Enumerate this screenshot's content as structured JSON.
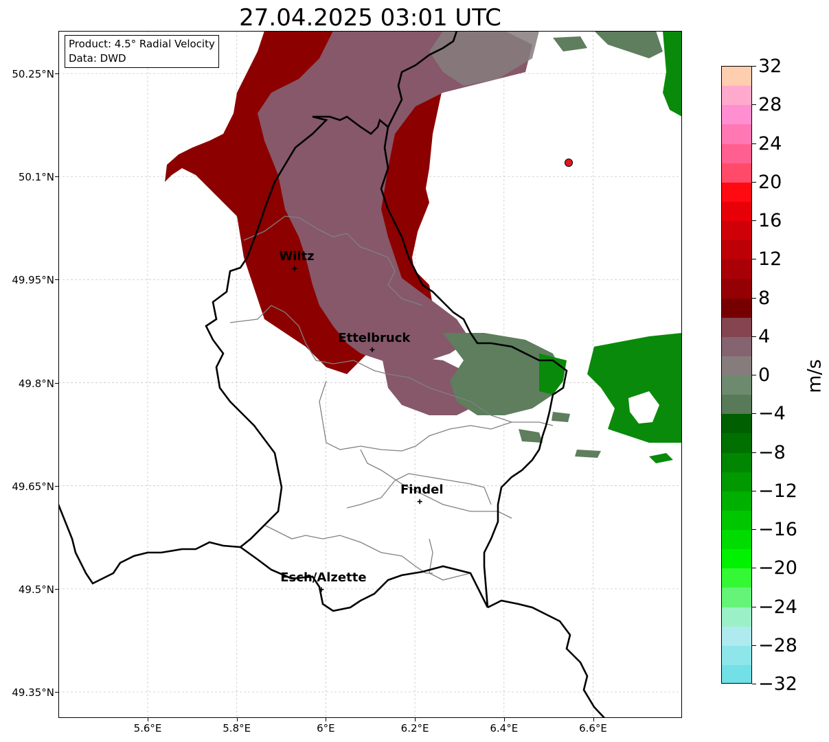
{
  "title": "27.04.2025 03:01 UTC",
  "info": {
    "product": "Product: 4.5° Radial Velocity",
    "data": "Data: DWD"
  },
  "latitude_ticks": [
    "50.25°N",
    "50.1°N",
    "49.95°N",
    "49.8°N",
    "49.65°N",
    "49.5°N",
    "49.35°N"
  ],
  "longitude_ticks": [
    "5.6°E",
    "5.8°E",
    "6°E",
    "6.2°E",
    "6.4°E",
    "6.6°E"
  ],
  "cities": [
    {
      "name": "Wiltz",
      "lon": 5.93,
      "lat": 49.966
    },
    {
      "name": "Ettelbruck",
      "lon": 6.104,
      "lat": 49.848
    },
    {
      "name": "Findel",
      "lon": 6.211,
      "lat": 49.627
    },
    {
      "name": "Esch/Alzette",
      "lon": 5.99,
      "lat": 49.499
    }
  ],
  "radar_site_marker_color": "#e8141e",
  "colorbar": {
    "unit": "m/s",
    "ticks": [
      "32",
      "28",
      "24",
      "20",
      "16",
      "12",
      "8",
      "4",
      "0",
      "−4",
      "−8",
      "−12",
      "−16",
      "−20",
      "−24",
      "−28",
      "−32"
    ],
    "colors_top_to_bottom": [
      "#ffcdb0",
      "#ffaacc",
      "#ff8fd0",
      "#ff78b4",
      "#ff6090",
      "#ff4a6a",
      "#ff0a10",
      "#e80008",
      "#d00008",
      "#bc0006",
      "#a80006",
      "#940004",
      "#760000",
      "#844450",
      "#846470",
      "#867c7c",
      "#6e8a6e",
      "#587a58",
      "#005f00",
      "#007000",
      "#008600",
      "#009a00",
      "#00b000",
      "#00c600",
      "#00dc00",
      "#00f200",
      "#34f834",
      "#66f478",
      "#9cf0c8",
      "#aeeaee",
      "#8ee6ea",
      "#72e0e6"
    ]
  },
  "colors": {
    "inbound_strong": "#8c0000",
    "inbound_weak": "#86586a",
    "neutral": "#5e7e5e",
    "outbound": "#0a8a0a",
    "border": "#000000",
    "canton": "#808080",
    "grid": "#c8c8c8"
  }
}
